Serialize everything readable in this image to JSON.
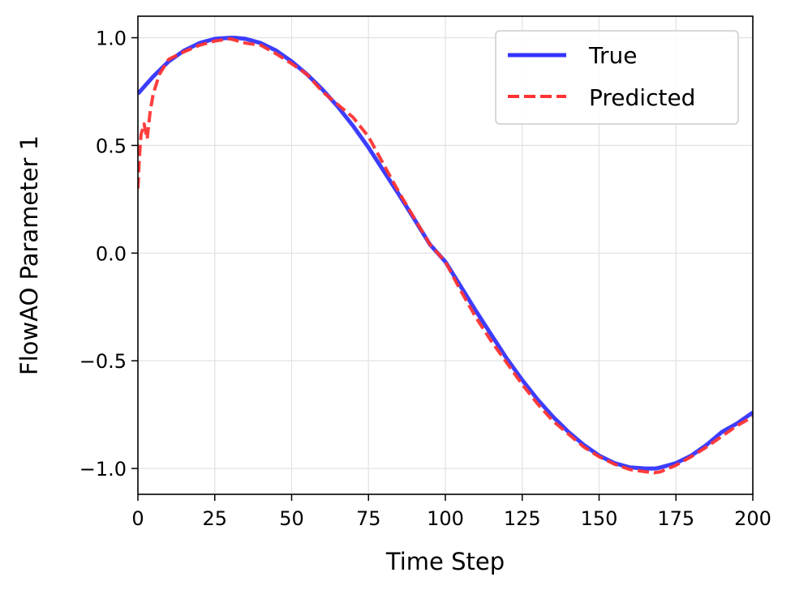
{
  "chart_data": {
    "type": "line",
    "title": "",
    "xlabel": "Time Step",
    "ylabel": "FlowAO Parameter 1",
    "xlim": [
      0,
      200
    ],
    "ylim": [
      -1.12,
      1.1
    ],
    "xticks": [
      0,
      25,
      50,
      75,
      100,
      125,
      150,
      175,
      200
    ],
    "xtick_labels": [
      "0",
      "25",
      "50",
      "75",
      "100",
      "125",
      "150",
      "175",
      "200"
    ],
    "yticks": [
      -1.0,
      -0.5,
      0.0,
      0.5,
      1.0
    ],
    "ytick_labels": [
      "−1.0",
      "−0.5",
      "0.0",
      "0.5",
      "1.0"
    ],
    "grid": true,
    "legend_position": "top-right",
    "series": [
      {
        "name": "True",
        "style": "solid",
        "color": "#3333ff",
        "x": [
          0,
          5,
          10,
          15,
          20,
          25,
          30,
          31.5,
          35,
          40,
          45,
          50,
          55,
          60,
          65,
          70,
          75,
          80,
          85,
          90,
          95,
          100,
          105,
          110,
          115,
          120,
          125,
          130,
          135,
          140,
          145,
          150,
          155,
          160,
          165,
          168.5,
          170,
          175,
          180,
          185,
          190,
          195,
          200
        ],
        "y": [
          0.74,
          0.82,
          0.89,
          0.94,
          0.975,
          0.995,
          1.0,
          1.0,
          0.995,
          0.975,
          0.94,
          0.89,
          0.83,
          0.76,
          0.68,
          0.59,
          0.49,
          0.38,
          0.27,
          0.155,
          0.04,
          -0.04,
          -0.155,
          -0.27,
          -0.38,
          -0.49,
          -0.59,
          -0.68,
          -0.76,
          -0.83,
          -0.89,
          -0.94,
          -0.975,
          -0.995,
          -1.0,
          -1.0,
          -0.995,
          -0.975,
          -0.94,
          -0.89,
          -0.83,
          -0.79,
          -0.74
        ]
      },
      {
        "name": "Predicted",
        "style": "dashed",
        "color": "#ff3333",
        "x": [
          0,
          0.5,
          1,
          2,
          3,
          4,
          5,
          7,
          10,
          15,
          20,
          25,
          30,
          35,
          40,
          45,
          50,
          55,
          60,
          65,
          70,
          75,
          80,
          85,
          90,
          95,
          100,
          105,
          110,
          115,
          120,
          125,
          130,
          135,
          140,
          145,
          150,
          155,
          160,
          165,
          168,
          170,
          175,
          180,
          185,
          190,
          195,
          200
        ],
        "y": [
          0.3,
          0.45,
          0.55,
          0.6,
          0.53,
          0.66,
          0.74,
          0.83,
          0.9,
          0.935,
          0.965,
          0.985,
          0.995,
          0.975,
          0.965,
          0.925,
          0.88,
          0.83,
          0.75,
          0.69,
          0.63,
          0.54,
          0.41,
          0.28,
          0.16,
          0.04,
          -0.04,
          -0.175,
          -0.3,
          -0.41,
          -0.51,
          -0.61,
          -0.7,
          -0.78,
          -0.84,
          -0.9,
          -0.945,
          -0.98,
          -1.005,
          -1.015,
          -1.02,
          -1.015,
          -0.985,
          -0.945,
          -0.9,
          -0.85,
          -0.8,
          -0.76
        ]
      }
    ]
  }
}
